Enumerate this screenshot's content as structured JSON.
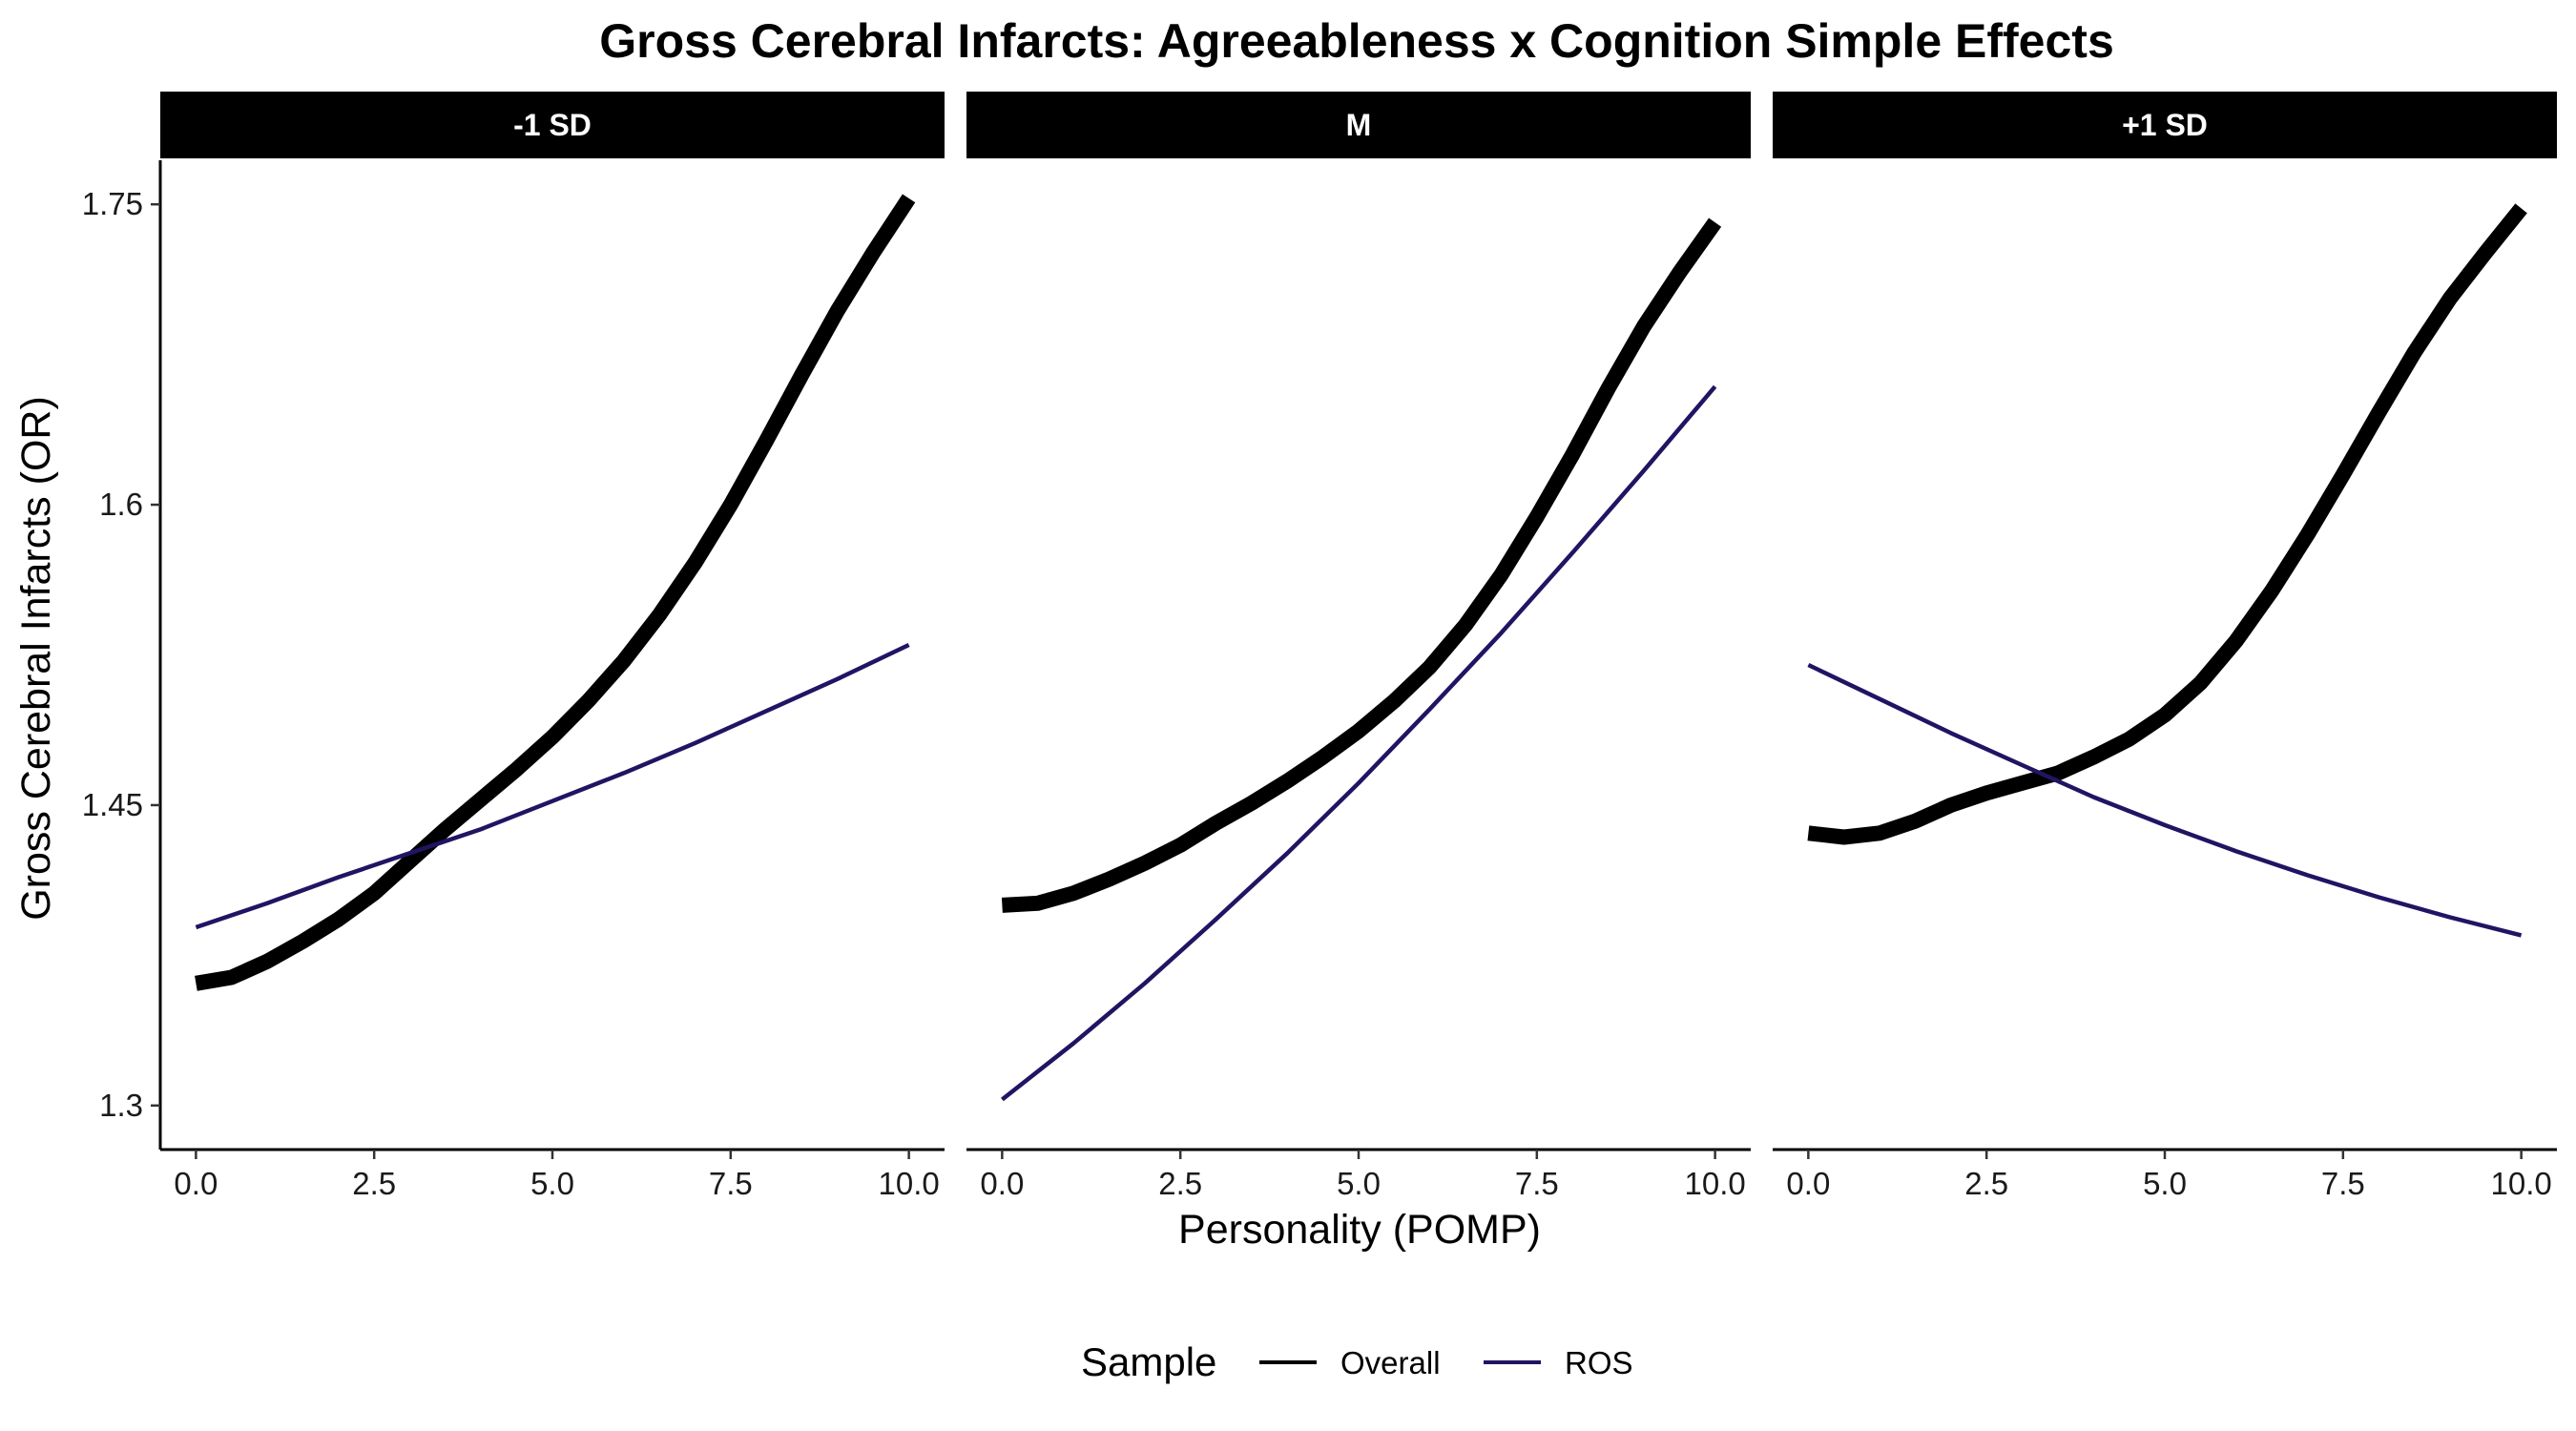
{
  "chart_data": {
    "type": "line",
    "title": "Gross Cerebral Infarcts: Agreeableness x Cognition Simple Effects",
    "xlabel": "Personality (POMP)",
    "ylabel": "Gross Cerebral Infarcts (OR)",
    "xlim": [
      -0.5,
      10.5
    ],
    "ylim": [
      1.278,
      1.772
    ],
    "x_ticks": [
      0,
      2.5,
      5,
      7.5,
      10
    ],
    "x_tick_labels": [
      "0.0",
      "2.5",
      "5.0",
      "7.5",
      "10.0"
    ],
    "y_ticks": [
      1.3,
      1.45,
      1.6,
      1.75
    ],
    "y_tick_labels": [
      "1.3",
      "1.45",
      "1.6",
      "1.75"
    ],
    "grid": false,
    "legend": {
      "title": "Sample",
      "position": "bottom",
      "entries": [
        {
          "label": "Overall",
          "color": "#000000"
        },
        {
          "label": "ROS",
          "color": "#1f1563"
        }
      ]
    },
    "panels": [
      {
        "label": "-1 SD",
        "series": [
          {
            "name": "Overall",
            "color": "#000000",
            "x": [
              0,
              0.5,
              1,
              1.5,
              2,
              2.5,
              3,
              3.5,
              4,
              4.5,
              5,
              5.5,
              6,
              6.5,
              7,
              7.5,
              8,
              8.5,
              9,
              9.5,
              10
            ],
            "y": [
              1.361,
              1.364,
              1.372,
              1.382,
              1.393,
              1.406,
              1.422,
              1.438,
              1.453,
              1.468,
              1.484,
              1.502,
              1.522,
              1.545,
              1.571,
              1.6,
              1.632,
              1.665,
              1.697,
              1.726,
              1.753
            ]
          },
          {
            "name": "ROS",
            "color": "#1f1563",
            "x": [
              0,
              1,
              2,
              3,
              4,
              5,
              6,
              7,
              8,
              9,
              10
            ],
            "y": [
              1.389,
              1.401,
              1.414,
              1.426,
              1.438,
              1.452,
              1.466,
              1.481,
              1.497,
              1.513,
              1.53
            ]
          }
        ]
      },
      {
        "label": "M",
        "series": [
          {
            "name": "Overall",
            "color": "#000000",
            "x": [
              0,
              0.5,
              1,
              1.5,
              2,
              2.5,
              3,
              3.5,
              4,
              4.5,
              5,
              5.5,
              6,
              6.5,
              7,
              7.5,
              8,
              8.5,
              9,
              9.5,
              10
            ],
            "y": [
              1.4,
              1.401,
              1.406,
              1.413,
              1.421,
              1.43,
              1.441,
              1.451,
              1.462,
              1.474,
              1.487,
              1.502,
              1.519,
              1.54,
              1.565,
              1.594,
              1.625,
              1.658,
              1.689,
              1.716,
              1.741
            ]
          },
          {
            "name": "ROS",
            "color": "#1f1563",
            "x": [
              0,
              1,
              2,
              3,
              4,
              5,
              6,
              7,
              8,
              9,
              10
            ],
            "y": [
              1.303,
              1.331,
              1.361,
              1.393,
              1.426,
              1.461,
              1.498,
              1.536,
              1.576,
              1.617,
              1.659
            ]
          }
        ]
      },
      {
        "label": "+1 SD",
        "series": [
          {
            "name": "Overall",
            "color": "#000000",
            "x": [
              0,
              0.5,
              1,
              1.5,
              2,
              2.5,
              3,
              3.5,
              4,
              4.5,
              5,
              5.5,
              6,
              6.5,
              7,
              7.5,
              8,
              8.5,
              9,
              9.5,
              10
            ],
            "y": [
              1.436,
              1.434,
              1.436,
              1.442,
              1.45,
              1.456,
              1.461,
              1.466,
              1.474,
              1.483,
              1.495,
              1.511,
              1.532,
              1.557,
              1.585,
              1.615,
              1.646,
              1.676,
              1.703,
              1.726,
              1.748
            ]
          },
          {
            "name": "ROS",
            "color": "#1f1563",
            "x": [
              0,
              1,
              2,
              3,
              4,
              5,
              6,
              7,
              8,
              9,
              10
            ],
            "y": [
              1.52,
              1.503,
              1.486,
              1.47,
              1.454,
              1.44,
              1.427,
              1.415,
              1.404,
              1.394,
              1.385
            ]
          }
        ]
      }
    ]
  }
}
